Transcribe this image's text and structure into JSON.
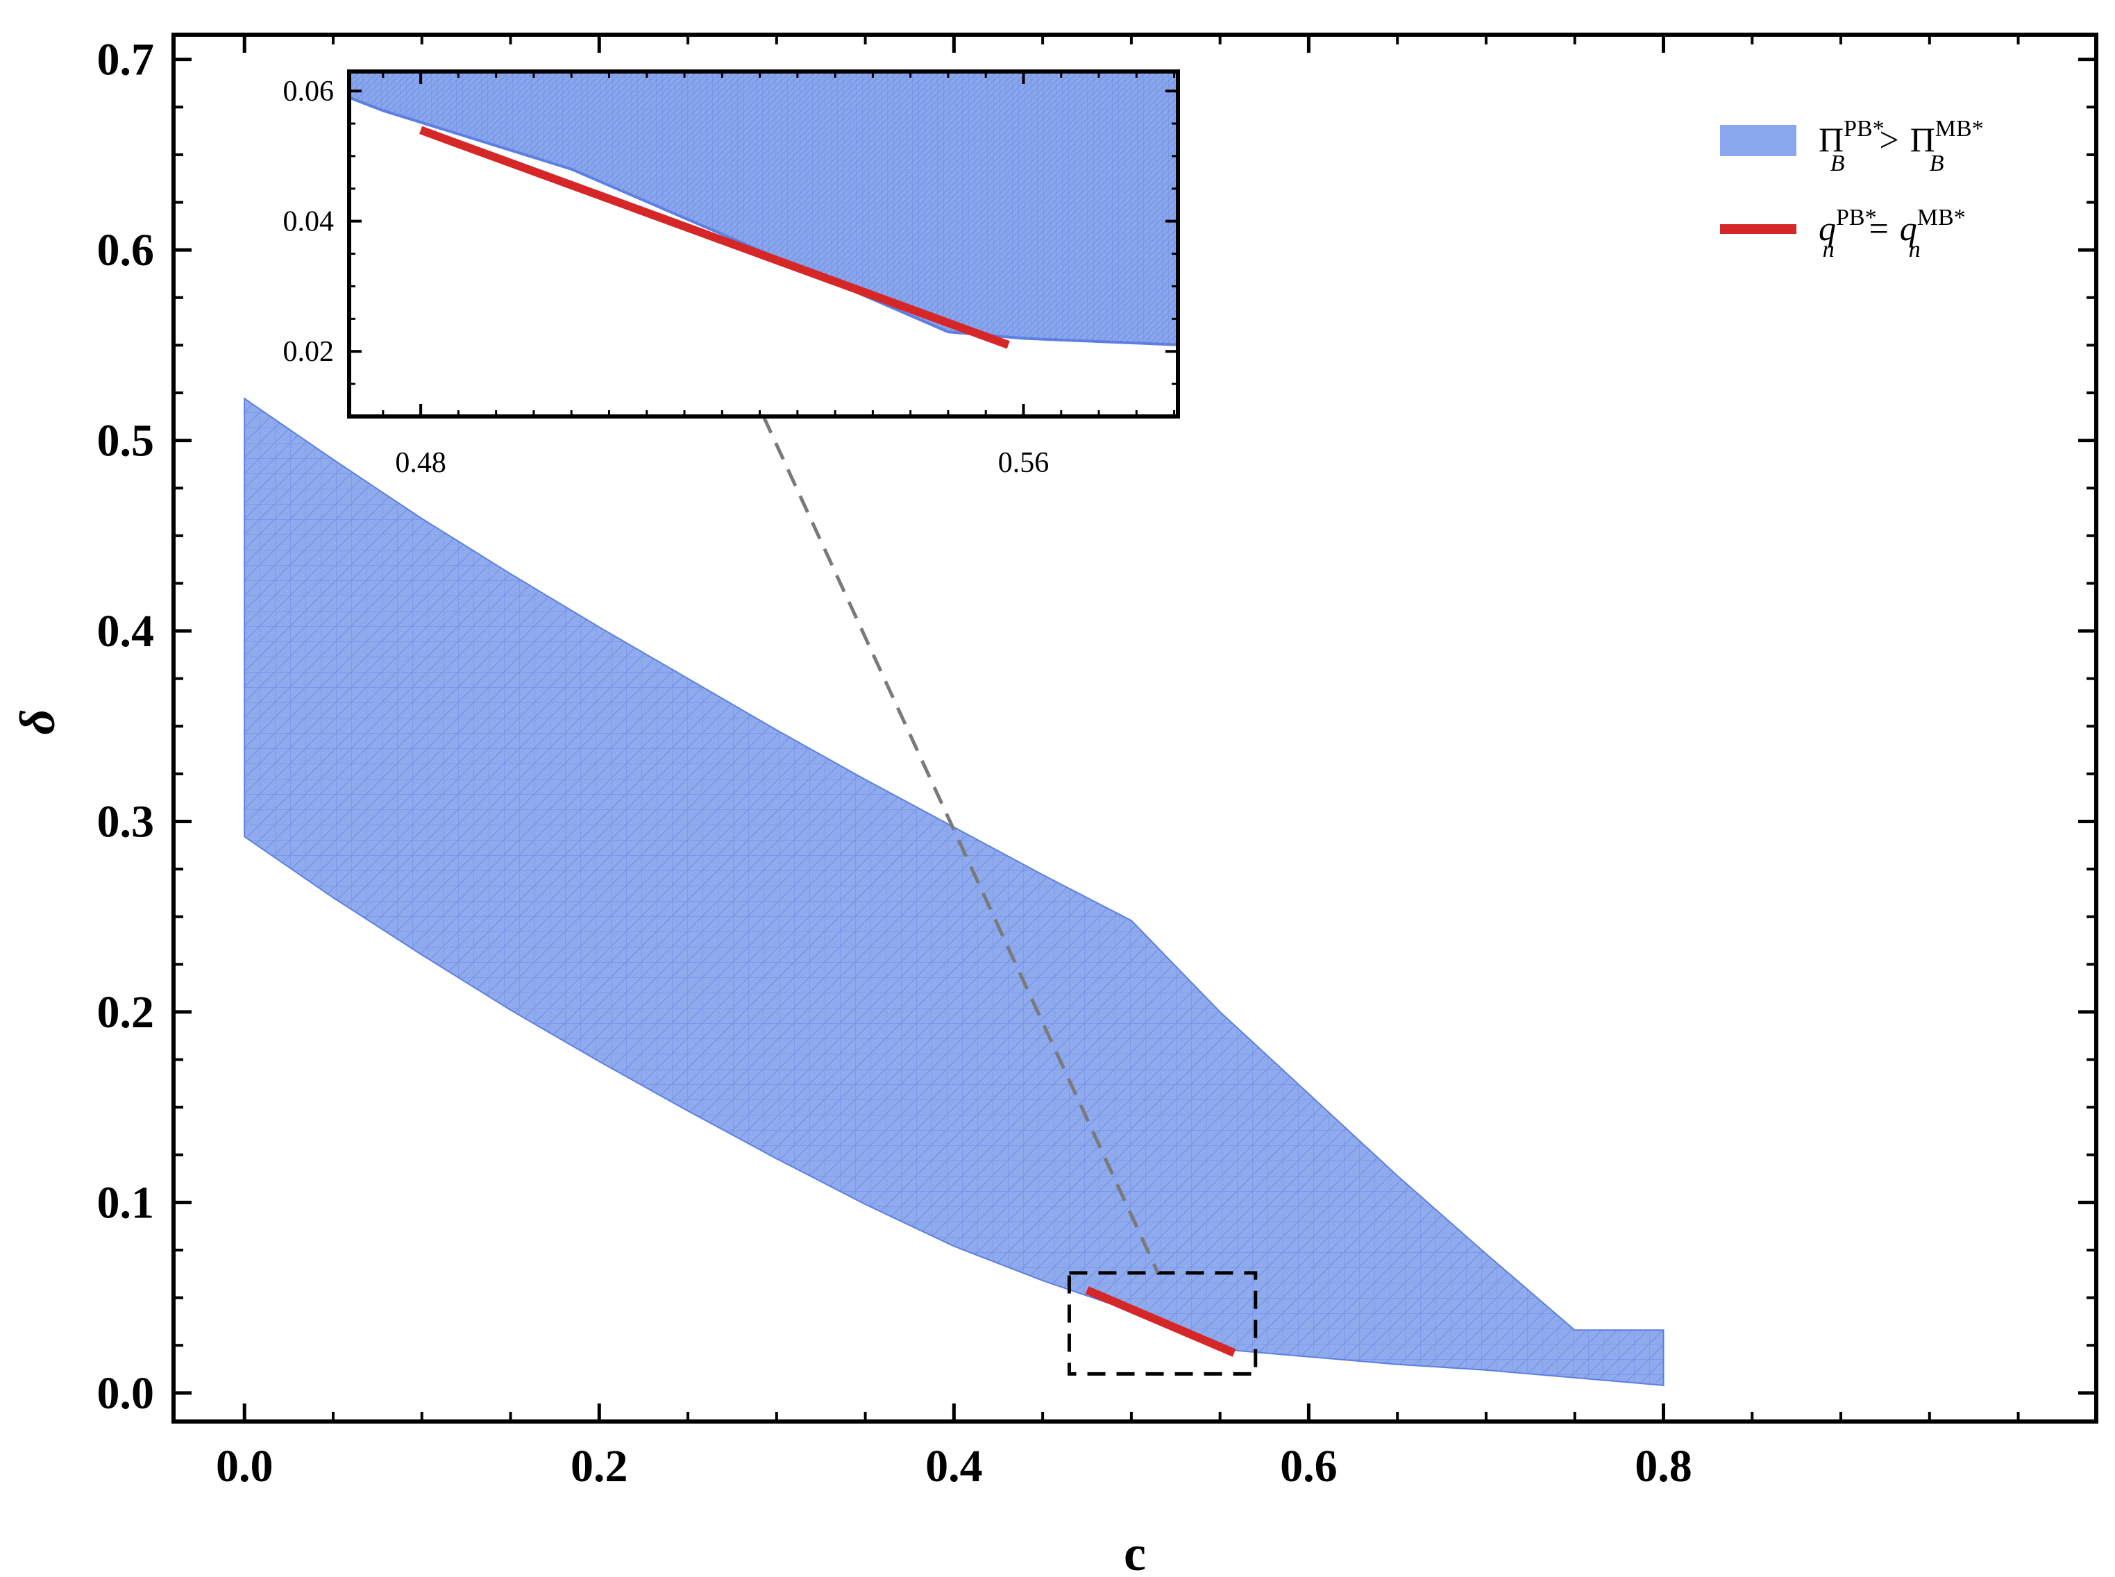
{
  "chart_data": {
    "type": "area",
    "xlabel": "c",
    "ylabel": "δ",
    "xlim": [
      -0.04,
      1.044
    ],
    "ylim": [
      -0.015,
      0.713
    ],
    "xticks": [
      0.0,
      0.2,
      0.4,
      0.6,
      0.8
    ],
    "yticks": [
      0.0,
      0.1,
      0.2,
      0.3,
      0.4,
      0.5,
      0.6,
      0.7
    ],
    "xtick_labels": [
      "0.0",
      "0.2",
      "0.4",
      "0.6",
      "0.8"
    ],
    "ytick_labels": [
      "0.0",
      "0.1",
      "0.2",
      "0.3",
      "0.4",
      "0.5",
      "0.6",
      "0.7"
    ],
    "grid": false,
    "legend_position": "top-right",
    "colors": {
      "region": "#8aa6ec",
      "region_edge": "#5d7fe0",
      "curve": "#d62728",
      "zoom_box": "#000000",
      "connector": "#7a7a7a"
    },
    "series": [
      {
        "name": "Π_B^{PB*} > Π_B^{MB*}",
        "kind": "region",
        "upper": {
          "x": [
            0.0,
            0.05,
            0.1,
            0.15,
            0.2,
            0.25,
            0.3,
            0.35,
            0.4,
            0.45,
            0.5,
            0.55,
            0.6,
            0.65,
            0.7,
            0.75,
            0.8
          ],
          "y": [
            0.522,
            0.49,
            0.459,
            0.43,
            0.402,
            0.375,
            0.348,
            0.322,
            0.297,
            0.272,
            0.248,
            0.2,
            0.157,
            0.114,
            0.073,
            0.033,
            0.033
          ]
        },
        "lower": {
          "x": [
            0.0,
            0.05,
            0.1,
            0.15,
            0.2,
            0.25,
            0.3,
            0.35,
            0.4,
            0.45,
            0.5,
            0.55,
            0.6,
            0.65,
            0.7,
            0.75,
            0.8
          ],
          "y": [
            0.292,
            0.26,
            0.23,
            0.201,
            0.174,
            0.148,
            0.123,
            0.099,
            0.077,
            0.059,
            0.043,
            0.023,
            0.019,
            0.015,
            0.012,
            0.008,
            0.004
          ]
        }
      },
      {
        "name": "q_n^{PB*} = q_n^{MB*}",
        "kind": "line",
        "x": [
          0.475,
          0.558
        ],
        "y": [
          0.054,
          0.021
        ]
      }
    ],
    "zoom_box": {
      "x": [
        0.465,
        0.57
      ],
      "y": [
        0.01,
        0.063
      ]
    },
    "inset": {
      "xlim": [
        0.4705,
        0.5805
      ],
      "ylim": [
        0.01,
        0.063
      ],
      "xticks": [
        0.48,
        0.56
      ],
      "yticks": [
        0.02,
        0.04,
        0.06
      ],
      "xtick_labels": [
        "0.48",
        "0.56"
      ],
      "ytick_labels": [
        "0.02",
        "0.04",
        "0.06"
      ],
      "region_lower": {
        "x": [
          0.4705,
          0.475,
          0.5,
          0.55,
          0.56,
          0.5805
        ],
        "y": [
          0.059,
          0.057,
          0.048,
          0.023,
          0.022,
          0.021
        ]
      },
      "curve": {
        "x": [
          0.48,
          0.558
        ],
        "y": [
          0.054,
          0.021
        ]
      }
    },
    "legend": [
      {
        "label_main": "Π",
        "label_sub": "B",
        "label_sup": "PB*",
        "op": ">",
        "label_main2": "Π",
        "label_sub2": "B",
        "label_sup2": "MB*"
      },
      {
        "label_main": "q",
        "label_sub": "n",
        "label_sup": "PB*",
        "op": "=",
        "label_main2": "q",
        "label_sub2": "n",
        "label_sup2": "MB*"
      }
    ]
  }
}
